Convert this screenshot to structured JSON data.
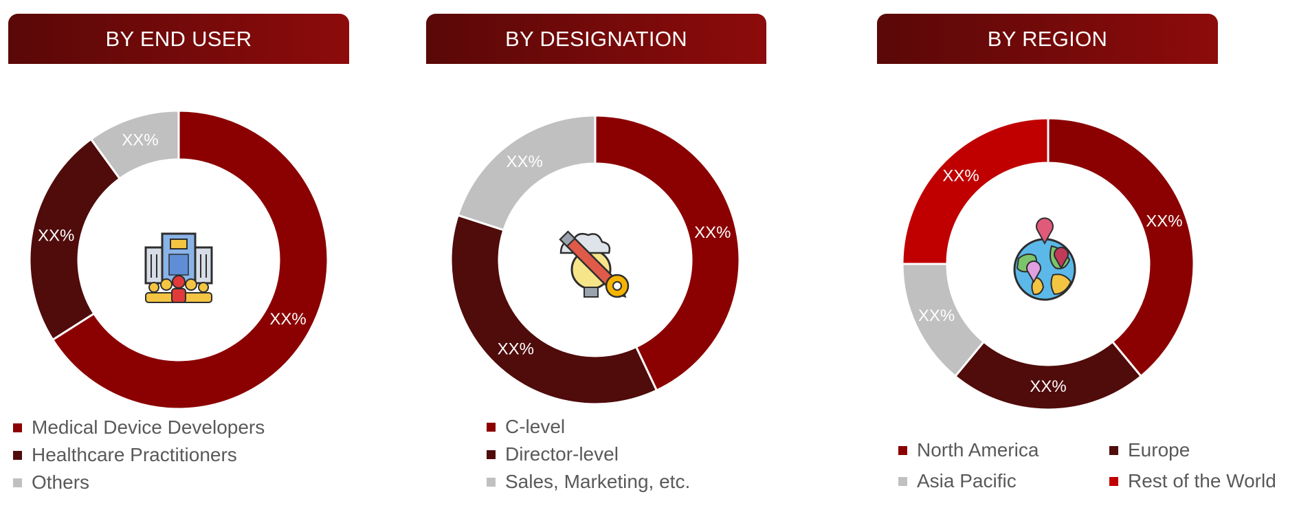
{
  "colors": {
    "dark_red": "#8b0000",
    "maroon": "#500b0b",
    "gray": "#c0c0c0",
    "bright_red": "#c00000",
    "label": "#ffffff",
    "legend_text": "#595959"
  },
  "panels": [
    {
      "header": "BY END USER",
      "center_icon": "corporate-building-people-icon"
    },
    {
      "header": "BY DESIGNATION",
      "center_icon": "idea-bulb-pencil-gear-icon"
    },
    {
      "header": "BY REGION",
      "center_icon": "globe-location-pins-icon"
    }
  ],
  "chart_data": [
    {
      "type": "pie",
      "variant": "donut",
      "title": "BY END USER",
      "categories": [
        "Medical Device Developers",
        "Healthcare Practitioners",
        "Others"
      ],
      "values": [
        66,
        24,
        10
      ],
      "slice_colors": [
        "#8b0000",
        "#500b0b",
        "#c0c0c0"
      ],
      "data_labels": [
        "XX%",
        "XX%",
        "XX%"
      ],
      "legend_position": "bottom"
    },
    {
      "type": "pie",
      "variant": "donut",
      "title": "BY DESIGNATION",
      "categories": [
        "C-level",
        "Director-level",
        "Sales, Marketing, etc."
      ],
      "values": [
        43,
        37,
        20
      ],
      "slice_colors": [
        "#8b0000",
        "#500b0b",
        "#c0c0c0"
      ],
      "data_labels": [
        "XX%",
        "XX%",
        "XX%"
      ],
      "legend_position": "bottom"
    },
    {
      "type": "pie",
      "variant": "donut",
      "title": "BY REGION",
      "categories": [
        "North America",
        "Europe",
        "Asia Pacific",
        "Rest of the World"
      ],
      "values": [
        39,
        22,
        14,
        25
      ],
      "slice_colors": [
        "#8b0000",
        "#500b0b",
        "#c0c0c0",
        "#c00000"
      ],
      "data_labels": [
        "XX%",
        "XX%",
        "XX%",
        "XX%"
      ],
      "legend_position": "bottom"
    }
  ]
}
